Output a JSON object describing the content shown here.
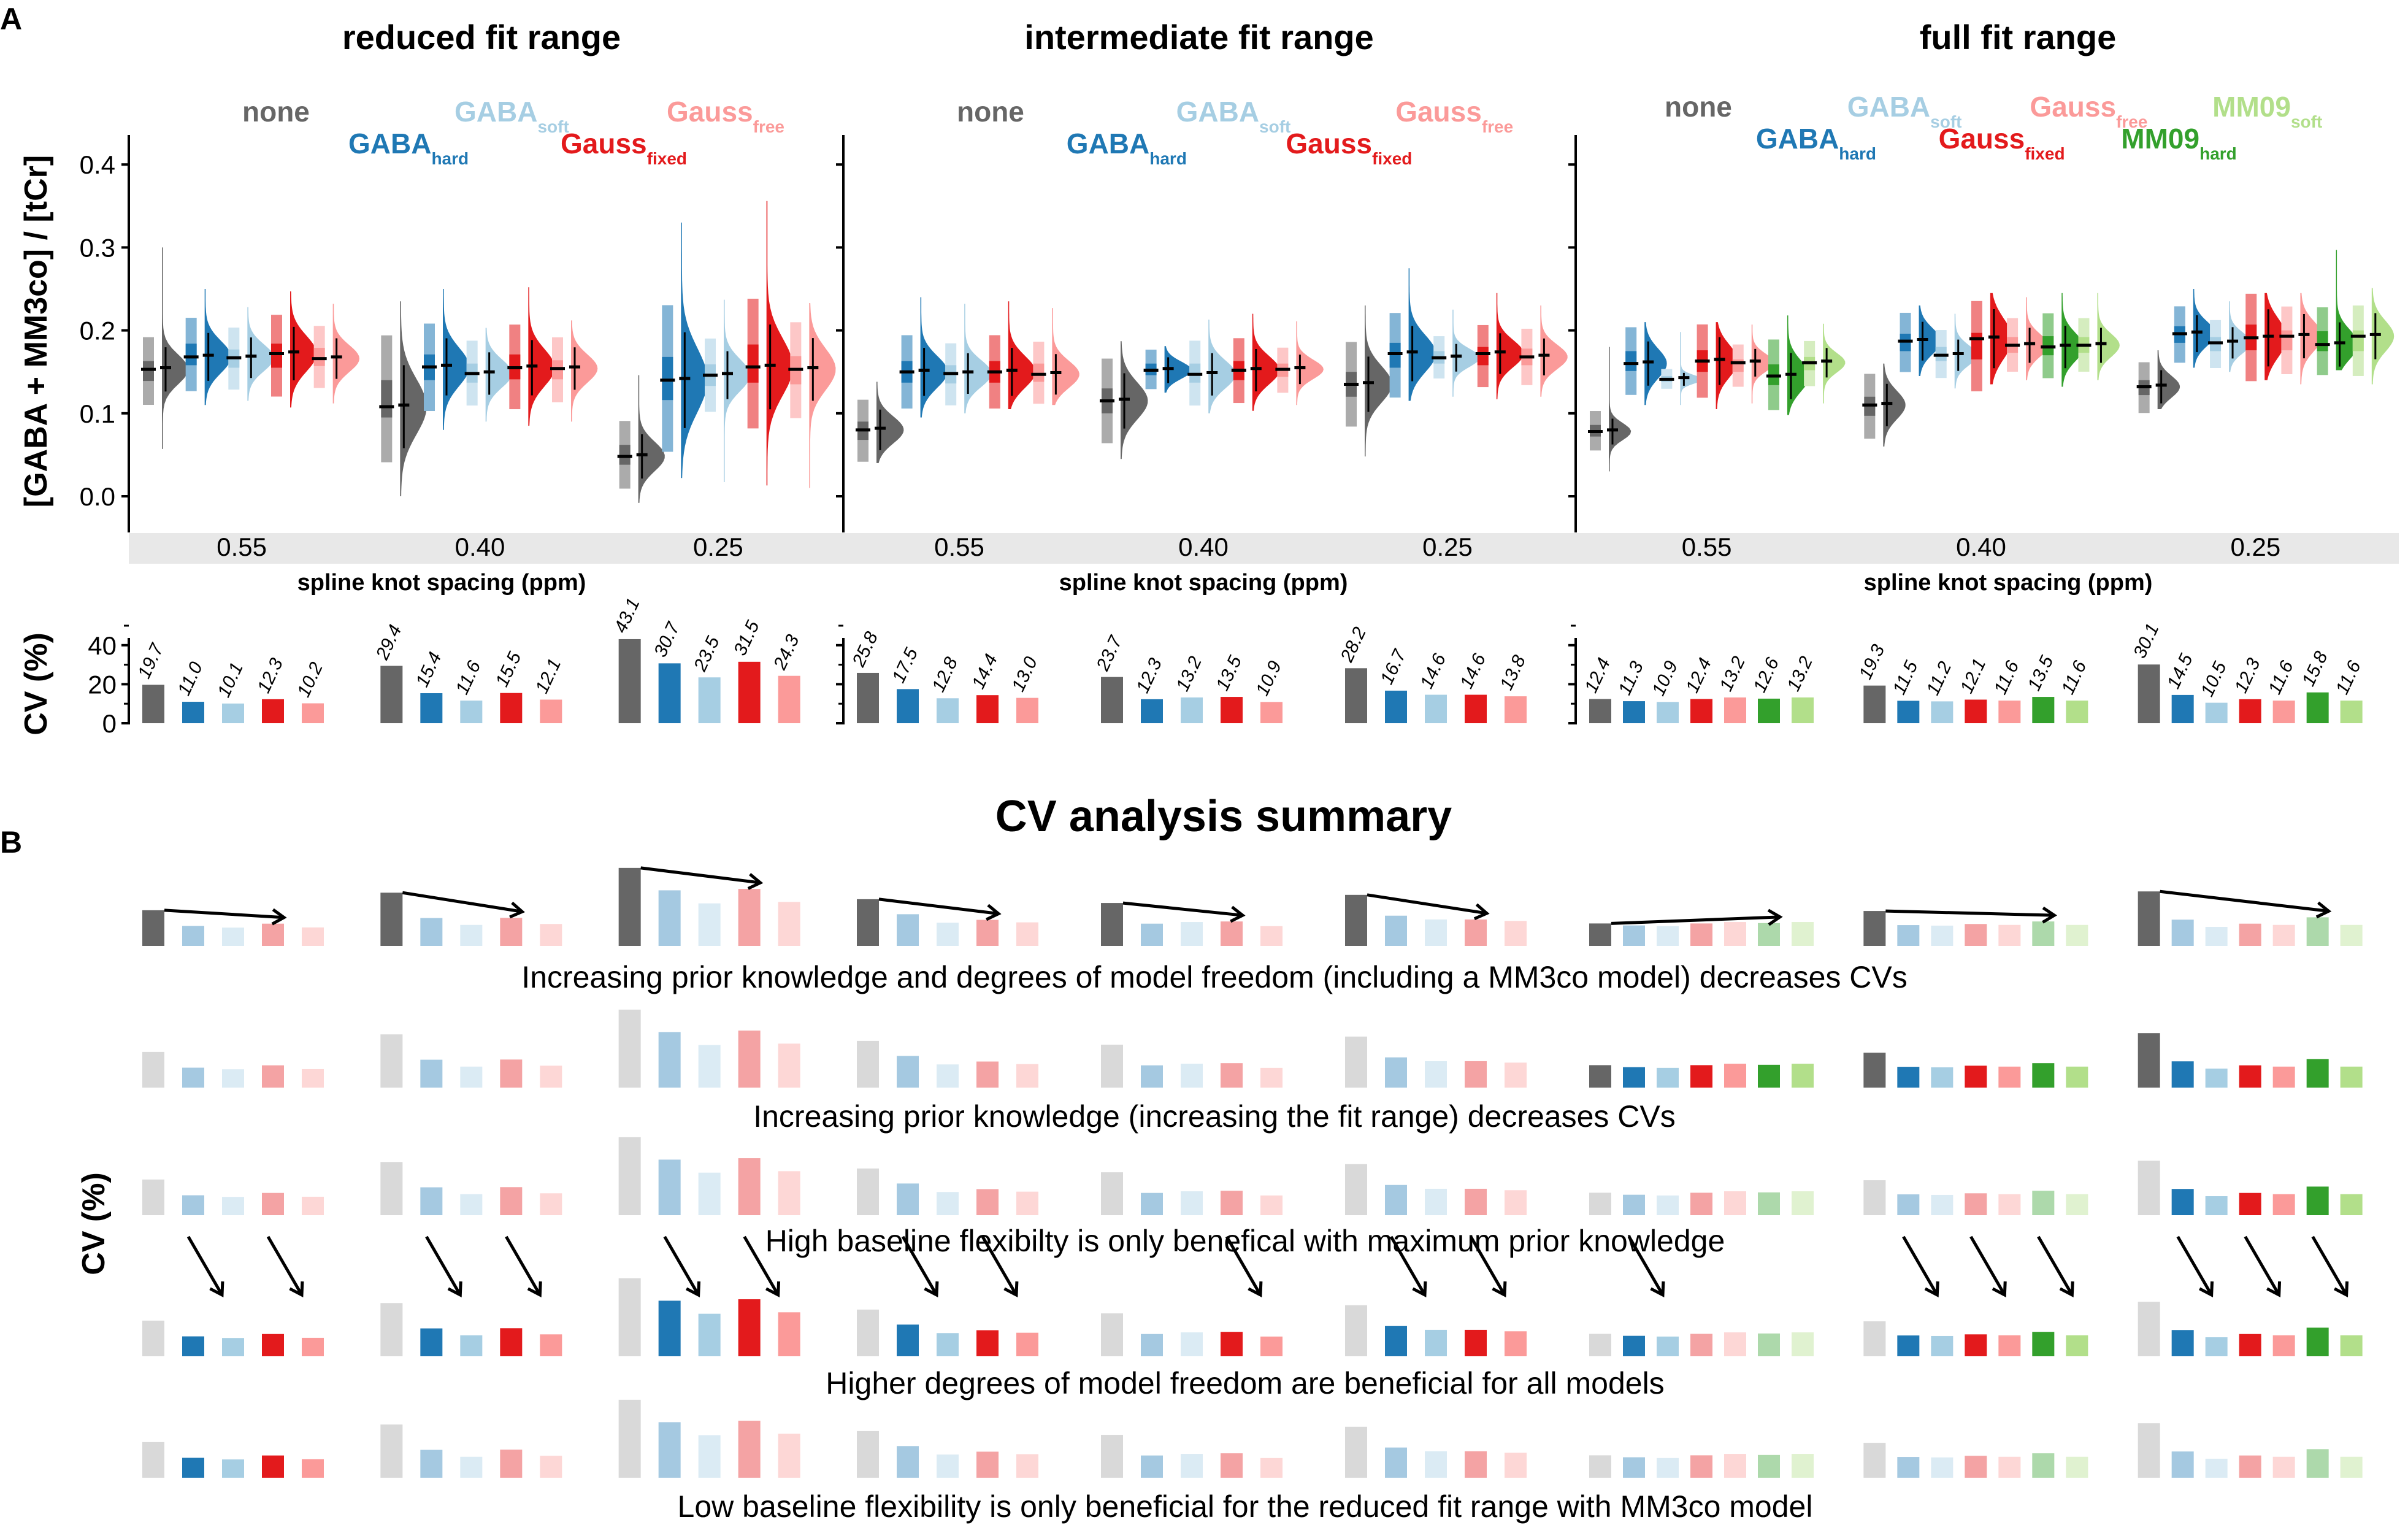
{
  "panel_labels": {
    "a": "A",
    "b": "B"
  },
  "models": [
    {
      "key": "none",
      "name": "none",
      "sub": "",
      "color": "#666666"
    },
    {
      "key": "gaba_hard",
      "name": "GABA",
      "sub": "hard",
      "color": "#1f78b4"
    },
    {
      "key": "gaba_soft",
      "name": "GABA",
      "sub": "soft",
      "color": "#a6cee3"
    },
    {
      "key": "gauss_fixed",
      "name": "Gauss",
      "sub": "fixed",
      "color": "#e31a1c"
    },
    {
      "key": "gauss_free",
      "name": "Gauss",
      "sub": "free",
      "color": "#fb9a99"
    },
    {
      "key": "mm09_hard",
      "name": "MM09",
      "sub": "hard",
      "color": "#33a02c"
    },
    {
      "key": "mm09_soft",
      "name": "MM09",
      "sub": "soft",
      "color": "#b2df8a"
    }
  ],
  "chart_data": [
    {
      "type": "violin",
      "id": "concentration",
      "ylabel": "[GABA + MM3co] / [tCr]",
      "xlabel": "spline knot spacing (ppm)",
      "ylim": [
        -0.05,
        0.44
      ],
      "yticks": [
        "0.0",
        "0.1",
        "0.2",
        "0.3",
        "0.4"
      ],
      "ytick_values": [
        0.0,
        0.1,
        0.2,
        0.3,
        0.4
      ],
      "grid": false,
      "facets": [
        {
          "title": "reduced fit range",
          "models": [
            "none",
            "gaba_hard",
            "gaba_soft",
            "gauss_fixed",
            "gauss_free"
          ],
          "groups": [
            {
              "knot": "0.55",
              "medians": [
                0.153,
                0.168,
                0.167,
                0.172,
                0.166
              ],
              "q25": [
                0.139,
                0.158,
                0.155,
                0.155,
                0.157
              ],
              "q75": [
                0.163,
                0.184,
                0.177,
                0.184,
                0.179
              ],
              "min": [
                0.057,
                0.11,
                0.115,
                0.107,
                0.112
              ],
              "max": [
                0.3,
                0.25,
                0.228,
                0.247,
                0.232
              ]
            },
            {
              "knot": "0.40",
              "medians": [
                0.108,
                0.156,
                0.148,
                0.155,
                0.154
              ],
              "q25": [
                0.095,
                0.14,
                0.137,
                0.141,
                0.141
              ],
              "q75": [
                0.14,
                0.171,
                0.16,
                0.171,
                0.164
              ],
              "min": [
                0.0,
                0.08,
                0.09,
                0.085,
                0.09
              ],
              "max": [
                0.235,
                0.25,
                0.203,
                0.252,
                0.212
              ]
            },
            {
              "knot": "0.25",
              "medians": [
                0.048,
                0.14,
                0.146,
                0.156,
                0.153
              ],
              "q25": [
                0.038,
                0.116,
                0.133,
                0.137,
                0.135
              ],
              "q75": [
                0.062,
                0.168,
                0.159,
                0.183,
                0.169
              ],
              "min": [
                -0.008,
                0.022,
                0.017,
                0.013,
                0.01
              ],
              "max": [
                0.146,
                0.33,
                0.237,
                0.356,
                0.233
              ]
            }
          ]
        },
        {
          "title": "intermediate fit range",
          "models": [
            "none",
            "gaba_hard",
            "gaba_soft",
            "gauss_fixed",
            "gauss_free"
          ],
          "groups": [
            {
              "knot": "0.55",
              "medians": [
                0.08,
                0.15,
                0.148,
                0.15,
                0.147
              ],
              "q25": [
                0.068,
                0.137,
                0.136,
                0.137,
                0.138
              ],
              "q75": [
                0.09,
                0.163,
                0.158,
                0.163,
                0.16
              ],
              "min": [
                0.04,
                0.095,
                0.1,
                0.105,
                0.11
              ],
              "max": [
                0.138,
                0.24,
                0.232,
                0.235,
                0.227
              ]
            },
            {
              "knot": "0.40",
              "medians": [
                0.115,
                0.152,
                0.147,
                0.152,
                0.153
              ],
              "q25": [
                0.1,
                0.146,
                0.137,
                0.14,
                0.144
              ],
              "q75": [
                0.13,
                0.16,
                0.16,
                0.163,
                0.16
              ],
              "min": [
                0.045,
                0.125,
                0.1,
                0.103,
                0.11
              ],
              "max": [
                0.187,
                0.181,
                0.213,
                0.22,
                0.211
              ]
            },
            {
              "knot": "0.25",
              "medians": [
                0.135,
                0.172,
                0.167,
                0.172,
                0.168
              ],
              "q25": [
                0.12,
                0.155,
                0.16,
                0.158,
                0.158
              ],
              "q75": [
                0.15,
                0.185,
                0.175,
                0.18,
                0.178
              ],
              "min": [
                0.048,
                0.115,
                0.12,
                0.117,
                0.12
              ],
              "max": [
                0.23,
                0.275,
                0.225,
                0.245,
                0.23
              ]
            }
          ]
        },
        {
          "title": "full fit range",
          "models": [
            "none",
            "gaba_hard",
            "gaba_soft",
            "gauss_fixed",
            "gauss_free",
            "mm09_hard",
            "mm09_soft"
          ],
          "groups": [
            {
              "knot": "0.55",
              "medians": [
                0.078,
                0.16,
                0.141,
                0.163,
                0.161,
                0.145,
                0.161
              ],
              "q25": [
                0.072,
                0.151,
                0.138,
                0.15,
                0.15,
                0.134,
                0.152
              ],
              "q75": [
                0.086,
                0.175,
                0.145,
                0.176,
                0.165,
                0.159,
                0.168
              ],
              "min": [
                0.03,
                0.11,
                0.11,
                0.105,
                0.112,
                0.098,
                0.112
              ],
              "max": [
                0.18,
                0.21,
                0.198,
                0.21,
                0.207,
                0.218,
                0.208
              ]
            },
            {
              "knot": "0.40",
              "medians": [
                0.11,
                0.187,
                0.17,
                0.19,
                0.182,
                0.18,
                0.182
              ],
              "q25": [
                0.097,
                0.175,
                0.163,
                0.165,
                0.173,
                0.17,
                0.173
              ],
              "q75": [
                0.12,
                0.196,
                0.18,
                0.197,
                0.192,
                0.193,
                0.192
              ],
              "min": [
                0.06,
                0.145,
                0.13,
                0.135,
                0.14,
                0.132,
                0.14
              ],
              "max": [
                0.16,
                0.23,
                0.22,
                0.245,
                0.24,
                0.245,
                0.245
              ]
            },
            {
              "knot": "0.25",
              "medians": [
                0.132,
                0.196,
                0.185,
                0.191,
                0.193,
                0.183,
                0.193
              ],
              "q25": [
                0.122,
                0.185,
                0.175,
                0.176,
                0.176,
                0.175,
                0.175
              ],
              "q75": [
                0.14,
                0.205,
                0.192,
                0.207,
                0.2,
                0.199,
                0.2
              ],
              "min": [
                0.105,
                0.155,
                0.15,
                0.14,
                0.135,
                0.152,
                0.135
              ],
              "max": [
                0.176,
                0.25,
                0.235,
                0.245,
                0.245,
                0.297,
                0.251
              ]
            }
          ]
        }
      ]
    },
    {
      "type": "bar",
      "id": "cv",
      "ylabel": "CV (%)",
      "ylim": [
        0,
        50
      ],
      "yticks": [
        "0",
        "20",
        "40"
      ],
      "ytick_values": [
        0,
        20,
        40
      ],
      "facets": [
        {
          "groups": [
            {
              "knot": "0.55",
              "values": [
                19.7,
                11.0,
                10.1,
                12.3,
                10.2
              ],
              "labels": [
                "19.7",
                "11.0",
                "10.1",
                "12.3",
                "10.2"
              ]
            },
            {
              "knot": "0.40",
              "values": [
                29.4,
                15.4,
                11.6,
                15.5,
                12.1
              ],
              "labels": [
                "29.4",
                "15.4",
                "11.6",
                "15.5",
                "12.1"
              ]
            },
            {
              "knot": "0.25",
              "values": [
                43.1,
                30.7,
                23.5,
                31.5,
                24.3
              ],
              "labels": [
                "43.1",
                "30.7",
                "23.5",
                "31.5",
                "24.3"
              ]
            }
          ]
        },
        {
          "groups": [
            {
              "knot": "0.55",
              "values": [
                25.8,
                17.5,
                12.8,
                14.4,
                13.0
              ],
              "labels": [
                "25.8",
                "17.5",
                "12.8",
                "14.4",
                "13.0"
              ]
            },
            {
              "knot": "0.40",
              "values": [
                23.7,
                12.3,
                13.2,
                13.5,
                10.9
              ],
              "labels": [
                "23.7",
                "12.3",
                "13.2",
                "13.5",
                "10.9"
              ]
            },
            {
              "knot": "0.25",
              "values": [
                28.2,
                16.7,
                14.6,
                14.6,
                13.8
              ],
              "labels": [
                "28.2",
                "16.7",
                "14.6",
                "14.6",
                "13.8"
              ]
            }
          ]
        },
        {
          "groups": [
            {
              "knot": "0.55",
              "values": [
                12.4,
                11.3,
                10.9,
                12.4,
                13.2,
                12.6,
                13.2
              ],
              "labels": [
                "12.4",
                "11.3",
                "10.9",
                "12.4",
                "13.2",
                "12.6",
                "13.2"
              ]
            },
            {
              "knot": "0.40",
              "values": [
                19.3,
                11.5,
                11.2,
                12.1,
                11.6,
                13.5,
                11.6
              ],
              "labels": [
                "19.3",
                "11.5",
                "11.2",
                "12.1",
                "11.6",
                "13.5",
                "11.6"
              ]
            },
            {
              "knot": "0.25",
              "values": [
                30.1,
                14.5,
                10.5,
                12.3,
                11.6,
                15.8,
                11.6
              ],
              "labels": [
                "30.1",
                "14.5",
                "10.5",
                "12.3",
                "11.6",
                "15.8",
                "11.6"
              ]
            }
          ]
        }
      ]
    },
    {
      "type": "bar",
      "id": "cv-summary",
      "title": "CV analysis summary",
      "ylabel": "CV (%)",
      "rows": [
        {
          "caption": "Increasing prior knowledge and degrees of model freedom (including a MM3co model) decreases CVs",
          "highlight": "none-only",
          "arrows": "none-to-gauss-free"
        },
        {
          "caption": "Increasing prior knowledge (increasing the fit range) decreases CVs",
          "highlight_groups": [
            6,
            7,
            8
          ]
        },
        {
          "caption": "High baseline flexibilty is only benefical with maximum prior knowledge",
          "highlight_groups_models": [
            [
              8,
              [
                1,
                2,
                3,
                4,
                5,
                6
              ]
            ]
          ]
        },
        {
          "caption": "Higher degrees of model freedom are beneficial for all models",
          "highlight_pairs": [
            [
              0,
              [
                1,
                3
              ]
            ],
            [
              1,
              [
                1,
                3
              ]
            ],
            [
              2,
              [
                1,
                3
              ]
            ],
            [
              3,
              [
                1,
                3
              ]
            ],
            [
              4,
              [
                3
              ]
            ],
            [
              5,
              [
                1,
                3
              ]
            ],
            [
              6,
              [
                1
              ]
            ],
            [
              7,
              [
                1,
                3,
                5
              ]
            ],
            [
              8,
              [
                1,
                3,
                5
              ]
            ]
          ]
        },
        {
          "caption": "Low baseline flexibility is only beneficial for the reduced fit range with MM3co model",
          "highlight_groups_models": [
            [
              0,
              [
                1,
                2,
                3,
                4
              ]
            ]
          ]
        }
      ]
    }
  ]
}
